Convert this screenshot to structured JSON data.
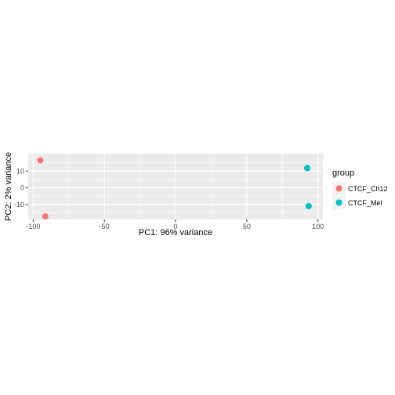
{
  "chart_data": {
    "type": "scatter",
    "xlabel": "PC1: 96% variance",
    "ylabel": "PC2: 2% variance",
    "xlim": [
      -103.5,
      103.5
    ],
    "ylim": [
      -19,
      20.5
    ],
    "x_ticks": [
      -100,
      -50,
      0,
      50,
      100
    ],
    "x_tick_labels": [
      "-100",
      "-50",
      "0",
      "50",
      "100"
    ],
    "y_ticks": [
      -10,
      0,
      10
    ],
    "y_tick_labels": [
      "-10",
      "0",
      "10"
    ],
    "grid": true,
    "legend": {
      "title": "group",
      "placement": "right",
      "entries": [
        {
          "label": "CTCF_Ch12",
          "color": "#F8766D"
        },
        {
          "label": "CTCF_Mel",
          "color": "#00BFC4"
        }
      ]
    },
    "series": [
      {
        "name": "CTCF_Ch12",
        "color": "#F8766D",
        "points": [
          {
            "x": -95,
            "y": 16.5
          },
          {
            "x": -91.5,
            "y": -17.2
          }
        ]
      },
      {
        "name": "CTCF_Mel",
        "color": "#00BFC4",
        "points": [
          {
            "x": 92.5,
            "y": 11.8
          },
          {
            "x": 93.5,
            "y": -11
          }
        ]
      }
    ],
    "panel_background": "#EBEBEB",
    "grid_color": "#FFFFFF"
  }
}
